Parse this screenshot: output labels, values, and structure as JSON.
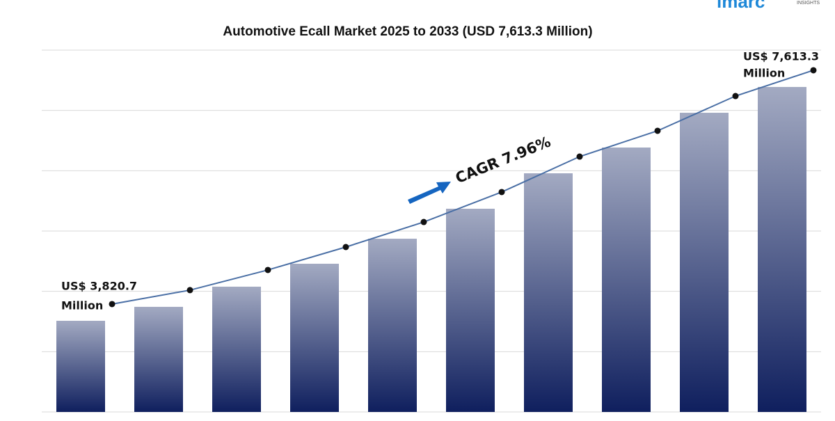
{
  "chart_data": {
    "type": "bar",
    "title": "Automotive Ecall Market 2025 to 2033 (USD 7,613.3 Million)",
    "logo": {
      "name": "imarc",
      "tagline": "INSIGHTS"
    },
    "categories": [
      null,
      null,
      null,
      null,
      null,
      null,
      null,
      null,
      null,
      null
    ],
    "values": [
      3820.7,
      4047,
      4374,
      4746,
      5152,
      5638,
      6213,
      6631,
      7195,
      7613.3
    ],
    "color": "#0f1f5e",
    "line_color": "#4a6fa5",
    "ylim": [
      2342,
      8211
    ],
    "grid": true,
    "annotations": {
      "start": [
        "US$ 3,820.7",
        "Million"
      ],
      "end": [
        "US$ 7,613.3",
        "Million"
      ],
      "cagr": "CAGR 7.96%"
    }
  }
}
